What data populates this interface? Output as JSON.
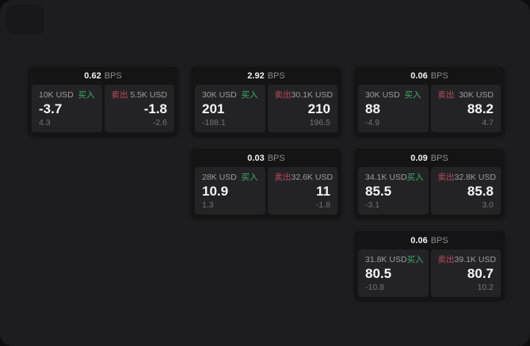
{
  "labels": {
    "bps_unit": "BPS",
    "buy": "买入",
    "sell": "卖出"
  },
  "colors": {
    "buy_green": "#3fae68",
    "sell_red": "#bf4a5e",
    "window_bg": "#1d1d1f",
    "card_bg": "#141415",
    "panel_bg": "#232325"
  },
  "cards": [
    {
      "bps": "0.62",
      "col": 0,
      "row": 0,
      "buy": {
        "size": "10K USD",
        "price": "-3.7",
        "change": "4.3"
      },
      "sell": {
        "size": "5.5K USD",
        "price": "-1.8",
        "change": "-2.6"
      }
    },
    {
      "bps": "2.92",
      "col": 1,
      "row": 0,
      "buy": {
        "size": "30K USD",
        "price": "201",
        "change": "-188.1"
      },
      "sell": {
        "size": "30.1K USD",
        "price": "210",
        "change": "196.5"
      }
    },
    {
      "bps": "0.06",
      "col": 2,
      "row": 0,
      "buy": {
        "size": "30K USD",
        "price": "88",
        "change": "-4.9"
      },
      "sell": {
        "size": "30K USD",
        "price": "88.2",
        "change": "4.7"
      }
    },
    {
      "bps": "0.03",
      "col": 1,
      "row": 1,
      "buy": {
        "size": "28K USD",
        "price": "10.9",
        "change": "1.3"
      },
      "sell": {
        "size": "32.6K USD",
        "price": "11",
        "change": "-1.8"
      }
    },
    {
      "bps": "0.09",
      "col": 2,
      "row": 1,
      "buy": {
        "size": "34.1K USD",
        "price": "85.5",
        "change": "-3.1"
      },
      "sell": {
        "size": "32.8K USD",
        "price": "85.8",
        "change": "3.0"
      }
    },
    {
      "bps": "0.06",
      "col": 2,
      "row": 2,
      "buy": {
        "size": "31.8K USD",
        "price": "80.5",
        "change": "-10.8"
      },
      "sell": {
        "size": "39.1K USD",
        "price": "80.7",
        "change": "10.2"
      }
    }
  ]
}
